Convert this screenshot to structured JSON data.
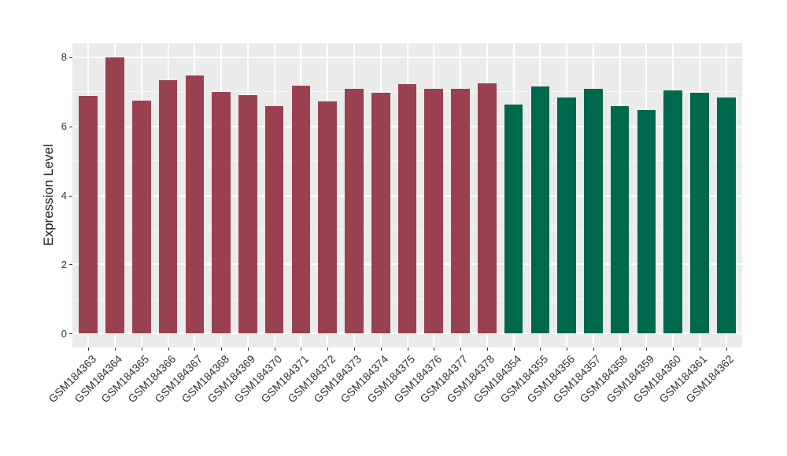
{
  "chart_data": {
    "type": "bar",
    "title": "",
    "xlabel": "",
    "ylabel": "Expression Level",
    "ylim": [
      -0.4,
      8.4
    ],
    "yticks": [
      0,
      2,
      4,
      6,
      8
    ],
    "yticks_minor": [
      1,
      3,
      5,
      7
    ],
    "grid": "major-and-minor-white-on-gray",
    "legend": "none",
    "categories": [
      "GSM184363",
      "GSM184364",
      "GSM184365",
      "GSM184366",
      "GSM184367",
      "GSM184368",
      "GSM184369",
      "GSM184370",
      "GSM184371",
      "GSM184372",
      "GSM184373",
      "GSM184374",
      "GSM184375",
      "GSM184376",
      "GSM184377",
      "GSM184378",
      "GSM184354",
      "GSM184355",
      "GSM184356",
      "GSM184357",
      "GSM184358",
      "GSM184359",
      "GSM184360",
      "GSM184361",
      "GSM184362"
    ],
    "values": [
      6.88,
      7.98,
      6.74,
      7.32,
      7.47,
      6.99,
      6.91,
      6.59,
      7.17,
      6.72,
      7.08,
      6.96,
      7.22,
      7.09,
      7.07,
      7.25,
      6.63,
      7.14,
      6.84,
      7.07,
      6.57,
      6.46,
      7.04,
      6.96,
      6.84
    ],
    "groups": [
      "group1",
      "group1",
      "group1",
      "group1",
      "group1",
      "group1",
      "group1",
      "group1",
      "group1",
      "group1",
      "group1",
      "group1",
      "group1",
      "group1",
      "group1",
      "group1",
      "group2",
      "group2",
      "group2",
      "group2",
      "group2",
      "group2",
      "group2",
      "group2",
      "group2"
    ],
    "palette": {
      "group1": "#9A4150",
      "group2": "#00684C"
    },
    "colors": {
      "panel_background": "#EBEBEB",
      "grid_major": "#FFFFFF",
      "grid_minor": "#F7F7F7",
      "tick_text": "#333333",
      "axis_title_text": "#1A1A1A",
      "figure_background": "#FFFFFF"
    }
  }
}
